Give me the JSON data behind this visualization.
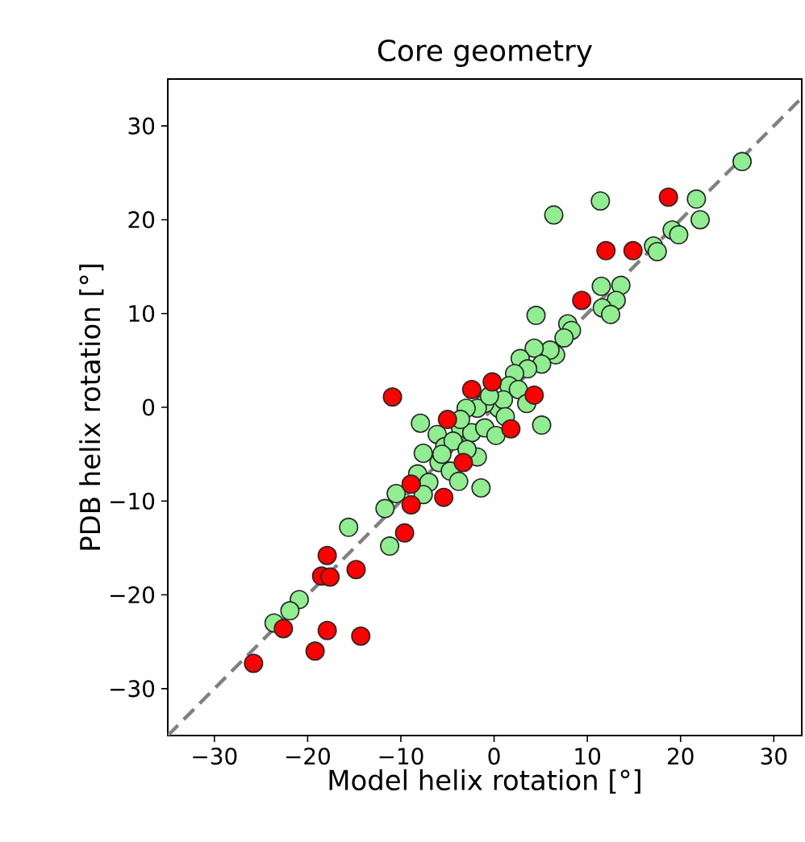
{
  "chart_data": {
    "type": "scatter",
    "title": "Core geometry",
    "xlabel": "Model helix rotation [°]",
    "ylabel": "PDB helix rotation [°]",
    "xlim": [
      -35,
      33
    ],
    "ylim": [
      -35,
      35
    ],
    "xticks": [
      {
        "value": -30,
        "label": "−30"
      },
      {
        "value": -20,
        "label": "−20"
      },
      {
        "value": -10,
        "label": "−10"
      },
      0,
      10,
      20,
      30
    ],
    "yticks": [
      {
        "value": -30,
        "label": "−30"
      },
      {
        "value": -20,
        "label": "−20"
      },
      {
        "value": -10,
        "label": "−10"
      },
      0,
      10,
      20,
      30
    ],
    "marker": "circle",
    "series": [
      {
        "type": "line",
        "color": "#808080",
        "line_style": "dashed",
        "marker": "none",
        "x": [
          -35,
          33
        ],
        "values": [
          -35,
          33
        ]
      },
      {
        "color": "#90ee90",
        "x": [
          26.6,
          21.7,
          22.1,
          19.1,
          19.8,
          17.1,
          17.5,
          11.4,
          6.4,
          11.5,
          13.6,
          13.1,
          11.6,
          12.5,
          4.5,
          7.9,
          8.3,
          7.5,
          6.6,
          6.0,
          4.3,
          2.8,
          5.1,
          3.6,
          2.2,
          1.6,
          2.6,
          3.5,
          0.5,
          -1.0,
          -1.8,
          -3.0,
          -3.6,
          -2.4,
          -1.0,
          0.2,
          5.1,
          -7.9,
          -6.1,
          -5.3,
          -4.4,
          -7.6,
          -5.9,
          -4.7,
          -1.8,
          -8.2,
          -7.0,
          -7.6,
          -10.5,
          -11.7,
          -1.4,
          -11.2,
          -15.6,
          -20.9,
          -21.9,
          -23.6,
          -3.6,
          -3.8,
          -5.6,
          -2.9,
          1.0,
          -0.5,
          1.2
        ],
        "values": [
          26.2,
          22.2,
          20.0,
          18.9,
          18.4,
          17.2,
          16.6,
          22.0,
          20.5,
          12.9,
          13.0,
          11.4,
          10.6,
          9.9,
          9.8,
          8.9,
          8.2,
          7.4,
          5.6,
          6.1,
          6.3,
          5.2,
          4.6,
          4.1,
          3.6,
          2.3,
          1.9,
          0.4,
          -0.1,
          0.4,
          -0.1,
          -0.1,
          -2.2,
          -2.7,
          -2.2,
          -3.0,
          -1.9,
          -1.7,
          -2.9,
          -4.2,
          -3.6,
          -4.9,
          -5.9,
          -6.8,
          -5.3,
          -7.1,
          -8.0,
          -9.3,
          -9.2,
          -10.8,
          -8.6,
          -14.8,
          -12.8,
          -20.5,
          -21.7,
          -23.0,
          -1.3,
          -7.9,
          -5.0,
          -4.5,
          0.8,
          1.2,
          -1.0
        ]
      },
      {
        "color": "#ff0000",
        "x": [
          -25.8,
          -22.6,
          -19.2,
          -17.9,
          -14.3,
          -17.9,
          -18.5,
          -17.6,
          -14.8,
          -9.6,
          -8.9,
          -8.9,
          -10.9,
          -5.4,
          -3.3,
          -2.4,
          -0.2,
          1.8,
          4.3,
          12.0,
          14.9,
          18.7,
          9.4,
          -5.0
        ],
        "values": [
          -27.3,
          -23.6,
          -26.0,
          -23.8,
          -24.4,
          -15.8,
          -18.0,
          -18.1,
          -17.3,
          -13.4,
          -10.4,
          -8.2,
          1.1,
          -9.6,
          -5.9,
          1.9,
          2.7,
          -2.3,
          1.3,
          16.7,
          16.7,
          22.4,
          11.4,
          -1.3
        ]
      }
    ]
  }
}
